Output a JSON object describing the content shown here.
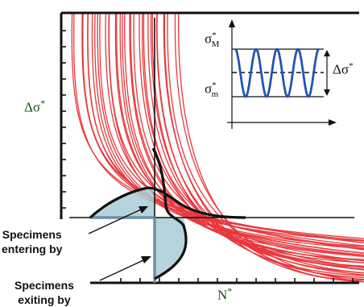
{
  "axes": {
    "y_label": "Δσ",
    "x_label": "N",
    "star": "*"
  },
  "inset": {
    "max_symbol": "σ",
    "max_sub": "M",
    "min_symbol": "σ",
    "min_sub": "m",
    "range_symbol": "Δσ",
    "star": "*"
  },
  "annotations": {
    "entering": [
      "Specimens",
      "entering by"
    ],
    "exiting": [
      "Specimens",
      "exiting by"
    ]
  },
  "colors": {
    "curves": "#e8383d",
    "outline": "#111111",
    "fill": "#a9cdd5",
    "arrow_blue": "#6b8fa6",
    "signal": "#2255b0",
    "axis_text": "#1f4e1f"
  },
  "style": {
    "curve_count": 34
  }
}
